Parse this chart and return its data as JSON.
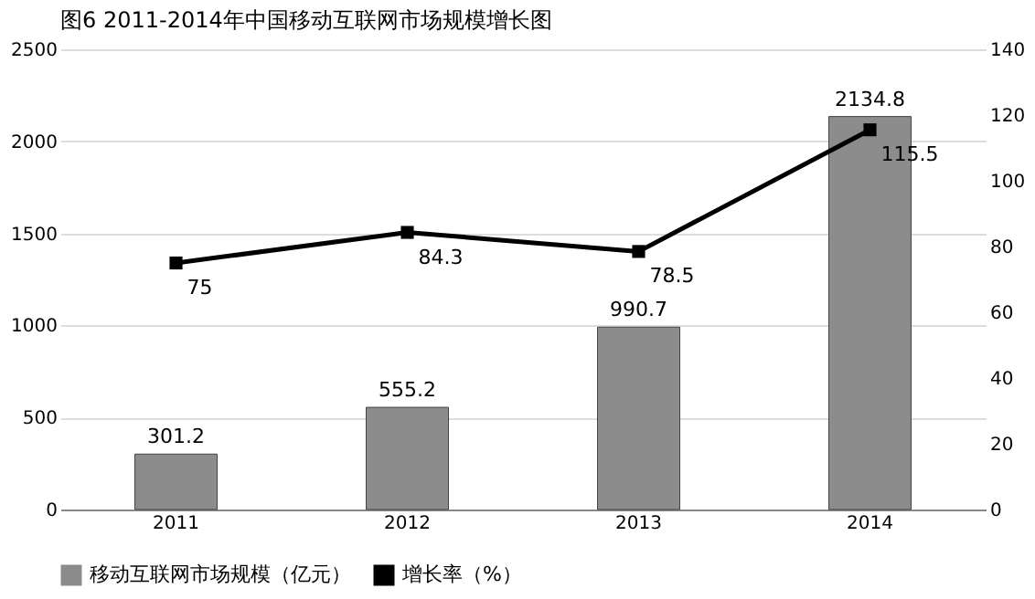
{
  "chart_data": {
    "type": "bar",
    "title": "图6 2011-2014年中国移动互联网市场规模增长图",
    "categories": [
      "2011",
      "2012",
      "2013",
      "2014"
    ],
    "series": [
      {
        "name": "移动互联网市场规模（亿元）",
        "color": "#8c8c8c",
        "values": [
          301.2,
          555.2,
          990.7,
          2134.8
        ]
      },
      {
        "name": "增长率（%）",
        "type": "line",
        "axis": "y2",
        "color": "#000000",
        "values": [
          75,
          84.3,
          78.5,
          115.5
        ]
      }
    ],
    "ylim": [
      0,
      2500
    ],
    "yticks": [
      0,
      500,
      1000,
      1500,
      2000,
      2500
    ],
    "y2lim": [
      0,
      140
    ],
    "y2ticks": [
      0,
      20,
      40,
      60,
      80,
      100,
      120,
      140
    ],
    "data_labels": true,
    "grid": "y",
    "legend": "bottom",
    "marker": "square",
    "line_style": "solid"
  }
}
